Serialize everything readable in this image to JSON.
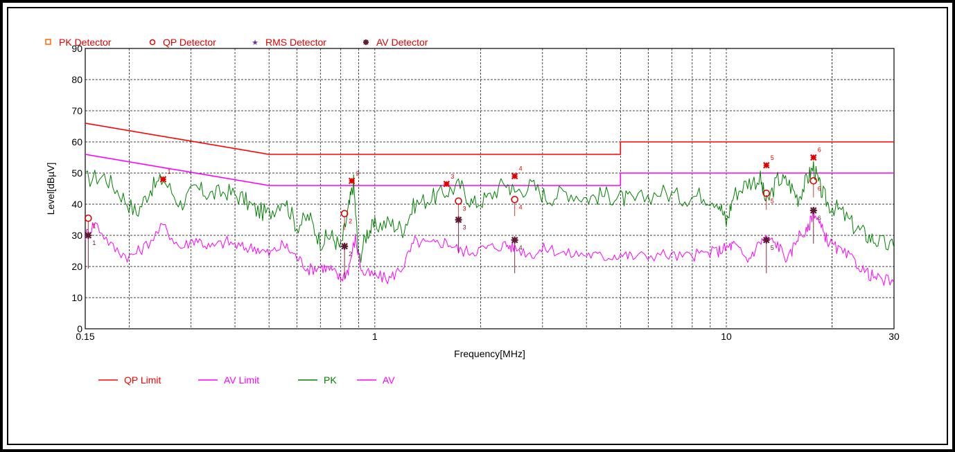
{
  "chart_data": {
    "type": "line",
    "title": "",
    "xlabel": "Frequency[MHz]",
    "ylabel": "Level[dBµV]",
    "xscale": "log",
    "xlim": [
      0.15,
      30
    ],
    "ylim": [
      0,
      90
    ],
    "x_ticks": [
      {
        "value": 0.15,
        "label": "0.15"
      },
      {
        "value": 1,
        "label": "1"
      },
      {
        "value": 10,
        "label": "10"
      },
      {
        "value": 30,
        "label": "30"
      }
    ],
    "y_ticks": [
      0,
      10,
      20,
      30,
      40,
      50,
      60,
      70,
      80,
      90
    ],
    "grid": true,
    "top_legend": [
      {
        "label": "PK Detector",
        "symbol": "square",
        "color": "#ff6600"
      },
      {
        "label": "QP Detector",
        "symbol": "circle",
        "color": "#e00000"
      },
      {
        "label": "RMS Detector",
        "symbol": "star",
        "color": "#7030a0"
      },
      {
        "label": "AV Detector",
        "symbol": "asterisk",
        "color": "#5c1a33"
      }
    ],
    "bottom_legend": [
      {
        "label": "QP Limit",
        "color": "#ff0000"
      },
      {
        "label": "AV Limit",
        "color": "#ff00ff"
      },
      {
        "label": "PK",
        "color": "#008000"
      },
      {
        "label": "AV",
        "color": "#ff00ff"
      }
    ],
    "limits": [
      {
        "name": "QP Limit",
        "color": "#ff0000",
        "points": [
          [
            0.15,
            66
          ],
          [
            0.5,
            56
          ],
          [
            5,
            56
          ],
          [
            5,
            60
          ],
          [
            30,
            60
          ]
        ]
      },
      {
        "name": "AV Limit",
        "color": "#ff00ff",
        "points": [
          [
            0.15,
            56
          ],
          [
            0.5,
            46
          ],
          [
            5,
            46
          ],
          [
            5,
            50
          ],
          [
            30,
            50
          ]
        ]
      }
    ],
    "series": [
      {
        "name": "PK",
        "color": "#008000",
        "x": [
          0.15,
          0.17,
          0.19,
          0.21,
          0.23,
          0.25,
          0.28,
          0.31,
          0.34,
          0.38,
          0.42,
          0.46,
          0.5,
          0.55,
          0.6,
          0.65,
          0.7,
          0.75,
          0.8,
          0.84,
          0.87,
          0.9,
          0.95,
          1.0,
          1.1,
          1.2,
          1.3,
          1.45,
          1.6,
          1.75,
          1.9,
          2.1,
          2.35,
          2.5,
          2.8,
          3.1,
          3.5,
          4.0,
          4.5,
          5.0,
          5.5,
          6.5,
          7.5,
          8.5,
          9.5,
          10.0,
          10.5,
          11.5,
          12.5,
          13.0,
          14.0,
          15.0,
          16.0,
          17.0,
          17.7,
          18.5,
          19.5,
          21.0,
          23.0,
          25.0,
          27.0,
          30.0
        ],
        "values": [
          48,
          49,
          43,
          37,
          45,
          48,
          40,
          45,
          43,
          44,
          42,
          38,
          37,
          42,
          33,
          36,
          28,
          30,
          26,
          38,
          47,
          22,
          31,
          33,
          34,
          32,
          40,
          42,
          44,
          46,
          40,
          42,
          47,
          44,
          46,
          42,
          44,
          42,
          43,
          42,
          41,
          44,
          42,
          43,
          41,
          34,
          43,
          47,
          48,
          40,
          48,
          47,
          42,
          48,
          52,
          45,
          40,
          38,
          33,
          30,
          28,
          26
        ]
      },
      {
        "name": "AV",
        "color": "#ff00ff",
        "x": [
          0.15,
          0.16,
          0.18,
          0.2,
          0.22,
          0.25,
          0.28,
          0.31,
          0.34,
          0.38,
          0.42,
          0.46,
          0.5,
          0.55,
          0.6,
          0.65,
          0.7,
          0.75,
          0.8,
          0.84,
          0.88,
          0.92,
          1.0,
          1.1,
          1.2,
          1.3,
          1.45,
          1.6,
          1.75,
          1.9,
          2.1,
          2.35,
          2.5,
          2.8,
          3.1,
          3.5,
          4.0,
          4.5,
          5.0,
          5.5,
          6.5,
          7.5,
          8.5,
          9.5,
          10.0,
          10.5,
          11.5,
          12.5,
          13.0,
          14.0,
          15.0,
          16.0,
          17.0,
          17.7,
          18.5,
          19.5,
          21.0,
          23.0,
          25.0,
          27.0,
          30.0
        ],
        "values": [
          30,
          34,
          26,
          23,
          26,
          33,
          26,
          29,
          26,
          28,
          26,
          26,
          24,
          27,
          23,
          19,
          20,
          19,
          16,
          19,
          29,
          18,
          17,
          16,
          20,
          28,
          27,
          28,
          25,
          25,
          26,
          27,
          26,
          24,
          26,
          24,
          24,
          23,
          24,
          23,
          24,
          23,
          24,
          25,
          26,
          27,
          22,
          28,
          29,
          27,
          22,
          30,
          31,
          38,
          33,
          28,
          25,
          22,
          18,
          16,
          15
        ]
      }
    ],
    "markers": [
      {
        "detector": "PK",
        "points": [
          {
            "label": "1",
            "x": 0.25,
            "y": 48
          },
          {
            "label": "2",
            "x": 0.86,
            "y": 47.5
          },
          {
            "label": "3",
            "x": 1.6,
            "y": 46.5
          },
          {
            "label": "4",
            "x": 2.5,
            "y": 49
          },
          {
            "label": "5",
            "x": 13.0,
            "y": 52.5
          },
          {
            "label": "6",
            "x": 17.7,
            "y": 55
          }
        ]
      },
      {
        "detector": "QP",
        "points": [
          {
            "label": "1",
            "x": 0.153,
            "y": 35.5
          },
          {
            "label": "2",
            "x": 0.82,
            "y": 37
          },
          {
            "label": "3",
            "x": 1.73,
            "y": 41
          },
          {
            "label": "4",
            "x": 2.5,
            "y": 41.5
          },
          {
            "label": "5",
            "x": 13.0,
            "y": 43.5
          },
          {
            "label": "6",
            "x": 17.7,
            "y": 47.5
          }
        ]
      },
      {
        "detector": "AV",
        "points": [
          {
            "label": "1",
            "x": 0.153,
            "y": 30
          },
          {
            "label": "2",
            "x": 0.82,
            "y": 26.5
          },
          {
            "label": "3",
            "x": 1.73,
            "y": 35
          },
          {
            "label": "4",
            "x": 2.5,
            "y": 28.5
          },
          {
            "label": "5",
            "x": 13.0,
            "y": 28.5
          },
          {
            "label": "6",
            "x": 17.7,
            "y": 38
          }
        ]
      }
    ]
  }
}
